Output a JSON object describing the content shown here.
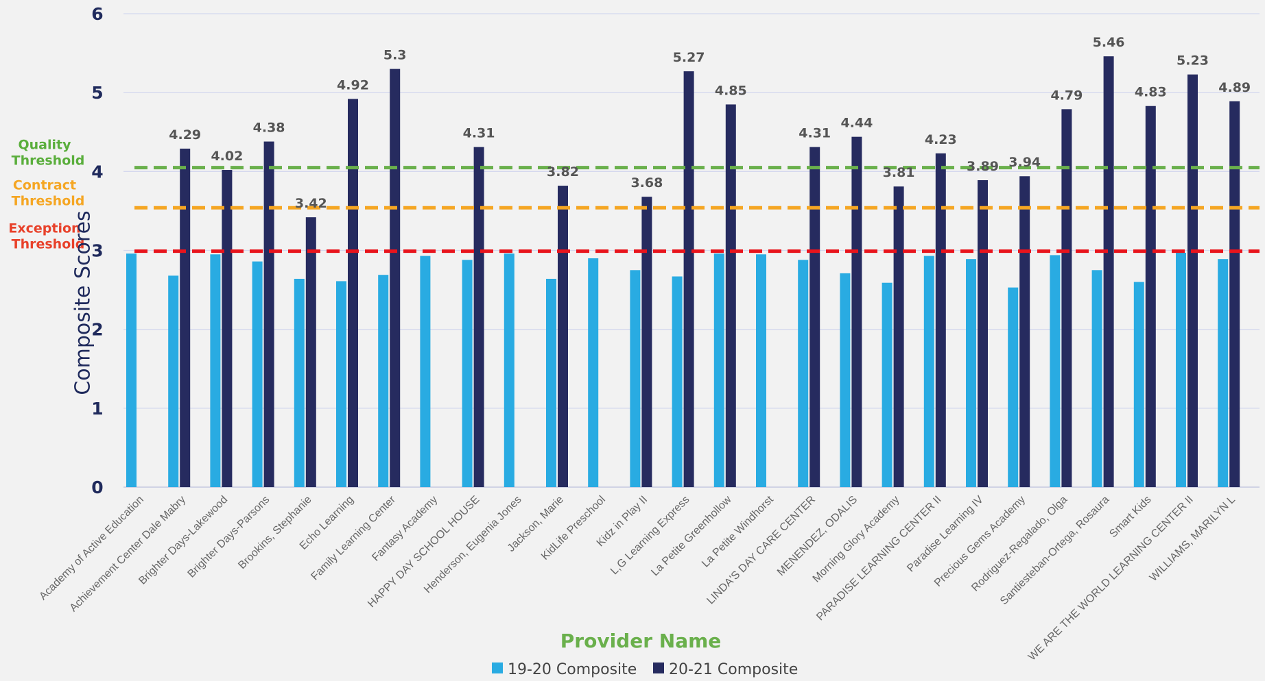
{
  "chart_data": {
    "type": "bar",
    "xlabel": "Provider Name",
    "ylabel": "Composite Scores",
    "ylim": [
      0,
      6
    ],
    "yticks": [
      0,
      1,
      2,
      3,
      4,
      5,
      6
    ],
    "grid": true,
    "legend_position": "bottom",
    "categories": [
      "Academy of Active Education",
      "Achievement Center Dale Mabry",
      "Brighter Days-Lakewood",
      "Brighter Days-Parsons",
      "Brookins, Stephanie",
      "Echo Learning",
      "Family Learning Center",
      "Fantasy Academy",
      "HAPPY DAY SCHOOL HOUSE",
      "Henderson, Eugenia Jones",
      "Jackson, Marie",
      "KidLife Preschool",
      "Kidz in Play II",
      "L,G Learning Express",
      "La Petite Greenhollow",
      "La Petite Windhorst",
      "LINDA'S DAY CARE CENTER",
      "MENENDEZ, ODALIS",
      "Morning Glory Academy",
      "PARADISE LEARNING CENTER II",
      "Paradise Learning IV",
      "Precious Gems Academy",
      "Rodriguez-Regalado, Olga",
      "Santiesteban-Ortega, Rosaura",
      "Smart Kids",
      "WE ARE THE WORLD LEARNING CENTER II",
      "WILLIAMS, MARILYN L"
    ],
    "series": [
      {
        "name": "19-20 Composite",
        "color": "#29abe2",
        "values": [
          2.96,
          2.68,
          2.95,
          2.86,
          2.64,
          2.61,
          2.69,
          2.93,
          2.88,
          2.96,
          2.64,
          2.9,
          2.75,
          2.67,
          2.96,
          2.95,
          2.88,
          2.71,
          2.59,
          2.93,
          2.89,
          2.53,
          2.94,
          2.75,
          2.6,
          2.97,
          2.89
        ]
      },
      {
        "name": "20-21 Composite",
        "color": "#262b5f",
        "values": [
          null,
          4.29,
          4.02,
          4.38,
          3.42,
          4.92,
          5.3,
          null,
          4.31,
          null,
          3.82,
          null,
          3.68,
          5.27,
          4.85,
          null,
          4.31,
          4.44,
          3.81,
          4.23,
          3.89,
          3.94,
          4.79,
          5.46,
          4.83,
          5.23,
          4.89
        ],
        "labels": [
          null,
          "4.29",
          "4.02",
          "4.38",
          "3.42",
          "4.92",
          "5.3",
          null,
          "4.31",
          null,
          "3.82",
          null,
          "3.68",
          "5.27",
          "4.85",
          null,
          "4.31",
          "4.44",
          "3.81",
          "4.23",
          "3.89",
          "3.94",
          "4.79",
          "5.46",
          "4.83",
          "5.23",
          "4.89"
        ]
      }
    ],
    "thresholds": [
      {
        "label_line1": "Quality",
        "label_line2": "Threshold",
        "value": 4.05,
        "color": "#6ab04c",
        "text_color": "#5aae3c"
      },
      {
        "label_line1": "Contract",
        "label_line2": "Threshold",
        "value": 3.54,
        "color": "#f5a623",
        "text_color": "#f5a623"
      },
      {
        "label_line1": "Exception",
        "label_line2": "Threshold",
        "value": 2.99,
        "color": "#e8141c",
        "text_color": "#e8412a"
      }
    ],
    "colors": {
      "axis_text": "#1f2a5c",
      "tick_text": "#666666",
      "data_label": "#555555",
      "xlabel": "#6ab04c",
      "grid": "#d4d8ee"
    }
  }
}
